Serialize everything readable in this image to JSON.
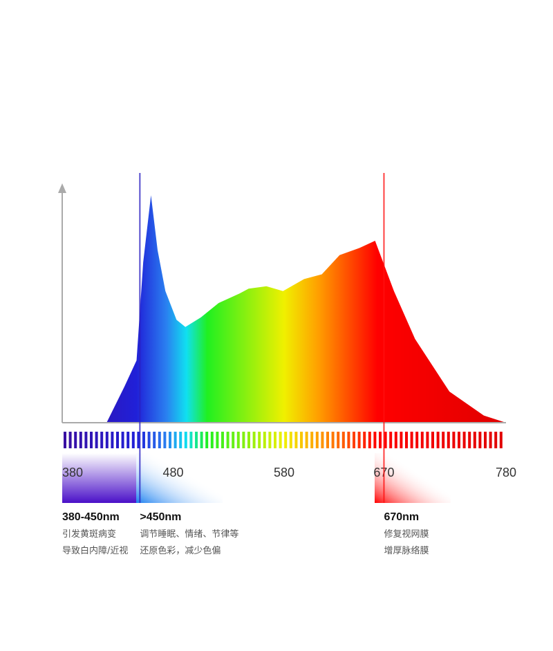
{
  "chart_data": {
    "type": "area",
    "x": [
      420,
      436,
      447,
      453,
      460,
      466,
      473,
      483,
      491,
      505,
      521,
      540,
      548,
      564,
      579,
      598,
      614,
      630,
      648,
      662,
      679,
      698,
      729,
      760,
      780
    ],
    "values": [
      0,
      15,
      26,
      67,
      95,
      72,
      55,
      43,
      40,
      44,
      50,
      54,
      56,
      57,
      55,
      60,
      62,
      70,
      73,
      76,
      55,
      35,
      13,
      3,
      0
    ],
    "xlim": [
      380,
      780
    ],
    "ylim": [
      0,
      100
    ],
    "xticks": [
      380,
      480,
      580,
      670,
      780
    ],
    "annotations": [
      {
        "x": 380,
        "label": "380-450nm",
        "text": [
          "引发黄斑病变",
          "导致白内障/近视"
        ]
      },
      {
        "x": 450,
        "label": ">450nm",
        "text": [
          "调节睡眠、情绪、节律等",
          "还原色彩，减少色偏"
        ]
      },
      {
        "x": 670,
        "label": "670nm",
        "text": [
          "修复视网膜",
          "增厚脉络膜"
        ]
      }
    ]
  }
}
